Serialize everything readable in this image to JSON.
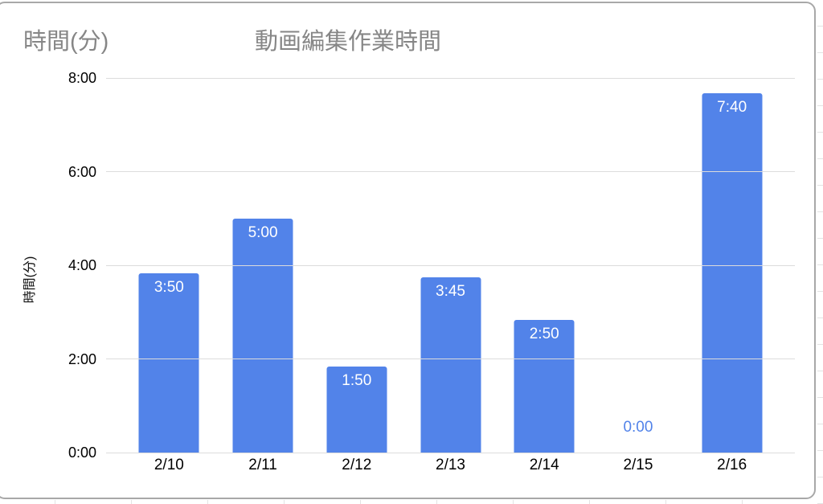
{
  "chart": {
    "corner_axis_title": "時間(分)",
    "title": "動画編集作業時間",
    "y_axis_title": "時間(分)"
  },
  "colors": {
    "bar": "#5283e9",
    "zero_value_label": "#5283e9",
    "title_text": "#868686",
    "tick_text": "#000000",
    "bar_label_text": "#ffffff",
    "gridline": "#dcdcdc",
    "card_border": "#a8a8a8"
  },
  "chart_data": {
    "type": "bar",
    "title": "動画編集作業時間",
    "xlabel": "",
    "ylabel": "時間(分)",
    "categories": [
      "2/10",
      "2/11",
      "2/12",
      "2/13",
      "2/14",
      "2/15",
      "2/16"
    ],
    "values_hours": [
      3.8333,
      5.0,
      1.8333,
      3.75,
      2.8333,
      0.0,
      7.6667
    ],
    "bar_labels": [
      "3:50",
      "5:00",
      "1:50",
      "3:45",
      "2:50",
      "0:00",
      "7:40"
    ],
    "ylim": [
      0,
      8
    ],
    "yticks": [
      {
        "value": 8,
        "label": "8:00"
      },
      {
        "value": 6,
        "label": "6:00"
      },
      {
        "value": 4,
        "label": "4:00"
      },
      {
        "value": 2,
        "label": "2:00"
      },
      {
        "value": 0,
        "label": "0:00"
      }
    ],
    "grid": true,
    "legend": "none"
  }
}
